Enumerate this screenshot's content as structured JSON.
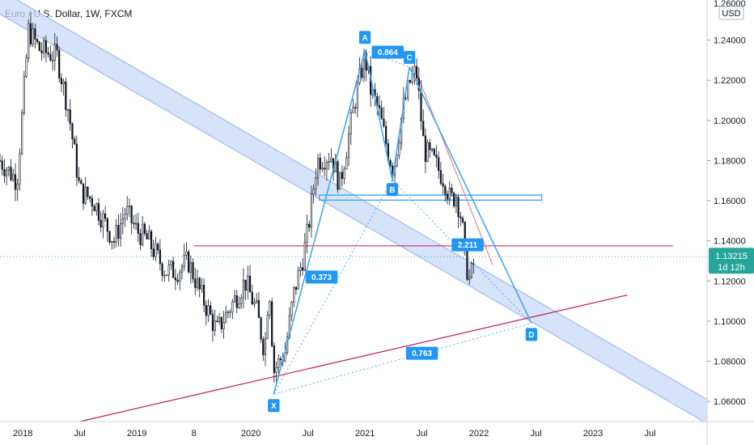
{
  "chart_data": {
    "type": "candlestick",
    "title": "Euro / U.S. Dollar, 1W, FXCM",
    "currency": "USD",
    "price_axis": {
      "range": [
        1.05,
        1.26
      ],
      "ticks": [
        "1.06000",
        "1.08000",
        "1.10000",
        "1.12000",
        "1.14000",
        "1.16000",
        "1.18000",
        "1.20000",
        "1.22000",
        "1.24000"
      ],
      "top_partial": "1.26000"
    },
    "time_axis": {
      "range": [
        2017.8,
        2024.0
      ],
      "ticks": [
        {
          "label": "2018",
          "t": 2018.0
        },
        {
          "label": "Jul",
          "t": 2018.5
        },
        {
          "label": "2019",
          "t": 2019.0
        },
        {
          "label": "8",
          "t": 2019.5
        },
        {
          "label": "2020",
          "t": 2020.0
        },
        {
          "label": "Jul",
          "t": 2020.5
        },
        {
          "label": "2021",
          "t": 2021.0
        },
        {
          "label": "Jul",
          "t": 2021.5
        },
        {
          "label": "2022",
          "t": 2022.0
        },
        {
          "label": "Jul",
          "t": 2022.5
        },
        {
          "label": "2023",
          "t": 2023.0
        },
        {
          "label": "Jul",
          "t": 2023.5
        }
      ]
    },
    "price_path": [
      [
        2017.8,
        1.18
      ],
      [
        2017.95,
        1.17
      ],
      [
        2018.05,
        1.245
      ],
      [
        2018.15,
        1.235
      ],
      [
        2018.3,
        1.232
      ],
      [
        2018.4,
        1.205
      ],
      [
        2018.5,
        1.165
      ],
      [
        2018.62,
        1.16
      ],
      [
        2018.8,
        1.14
      ],
      [
        2018.9,
        1.155
      ],
      [
        2019.0,
        1.145
      ],
      [
        2019.1,
        1.14
      ],
      [
        2019.25,
        1.125
      ],
      [
        2019.35,
        1.125
      ],
      [
        2019.45,
        1.13
      ],
      [
        2019.55,
        1.115
      ],
      [
        2019.7,
        1.095
      ],
      [
        2019.8,
        1.105
      ],
      [
        2019.95,
        1.12
      ],
      [
        2020.05,
        1.105
      ],
      [
        2020.12,
        1.085
      ],
      [
        2020.16,
        1.12
      ],
      [
        2020.2,
        1.075
      ],
      [
        2020.3,
        1.085
      ],
      [
        2020.38,
        1.115
      ],
      [
        2020.45,
        1.13
      ],
      [
        2020.5,
        1.145
      ],
      [
        2020.58,
        1.18
      ],
      [
        2020.7,
        1.183
      ],
      [
        2020.78,
        1.168
      ],
      [
        2020.92,
        1.212
      ],
      [
        2021.0,
        1.232
      ],
      [
        2021.05,
        1.215
      ],
      [
        2021.12,
        1.205
      ],
      [
        2021.2,
        1.185
      ],
      [
        2021.25,
        1.175
      ],
      [
        2021.33,
        1.205
      ],
      [
        2021.4,
        1.22
      ],
      [
        2021.45,
        1.225
      ],
      [
        2021.52,
        1.185
      ],
      [
        2021.6,
        1.18
      ],
      [
        2021.7,
        1.17
      ],
      [
        2021.75,
        1.16
      ],
      [
        2021.8,
        1.163
      ],
      [
        2021.85,
        1.15
      ],
      [
        2021.88,
        1.13
      ],
      [
        2021.92,
        1.12
      ],
      [
        2021.96,
        1.13
      ]
    ],
    "harmonic_pattern": {
      "points": [
        {
          "label": "X",
          "t": 2020.2,
          "price": 1.0636
        },
        {
          "label": "A",
          "t": 2021.0,
          "price": 1.2349
        },
        {
          "label": "B",
          "t": 2021.24,
          "price": 1.1704
        },
        {
          "label": "C",
          "t": 2021.39,
          "price": 1.2266
        },
        {
          "label": "D",
          "t": 2022.46,
          "price": 1.099
        }
      ],
      "ratios": [
        {
          "label": "0.864",
          "t": 2021.2,
          "price": 1.234
        },
        {
          "label": "0.373",
          "t": 2020.62,
          "price": 1.122
        },
        {
          "label": "0.763",
          "t": 2021.5,
          "price": 1.084
        },
        {
          "label": "2.211",
          "t": 2021.9,
          "price": 1.138
        }
      ]
    },
    "current_price": {
      "value": "1.13215",
      "countdown": "1d 12h",
      "price": 1.13215
    },
    "drawings": {
      "channel": {
        "start": [
          2017.8,
          1.259
        ],
        "end": [
          2024.0,
          1.055
        ],
        "width": 0.012
      },
      "support_line": {
        "start": [
          2018.5,
          1.05
        ],
        "end": [
          2023.3,
          1.113
        ]
      },
      "horizontal_line": {
        "price": 1.1375,
        "t_start": 2019.5,
        "t_end": 2023.7
      },
      "box": {
        "t_start": 2020.6,
        "t_end": 2022.55,
        "price_top": 1.1628,
        "price_bottom": 1.1603
      },
      "red_trendline": {
        "start": [
          2021.45,
          1.224
        ],
        "end": [
          2022.12,
          1.128
        ]
      }
    },
    "grid": false,
    "colors": {
      "bullish": "#131722",
      "bearish": "#131722",
      "pattern": "#42a5f5",
      "pattern_label": "#2196f3",
      "channel_fill": "#c9d9f5",
      "channel_edge": "#90b4ea",
      "trendline": "#c2185b",
      "current_price_tag": "#26a69a"
    }
  }
}
